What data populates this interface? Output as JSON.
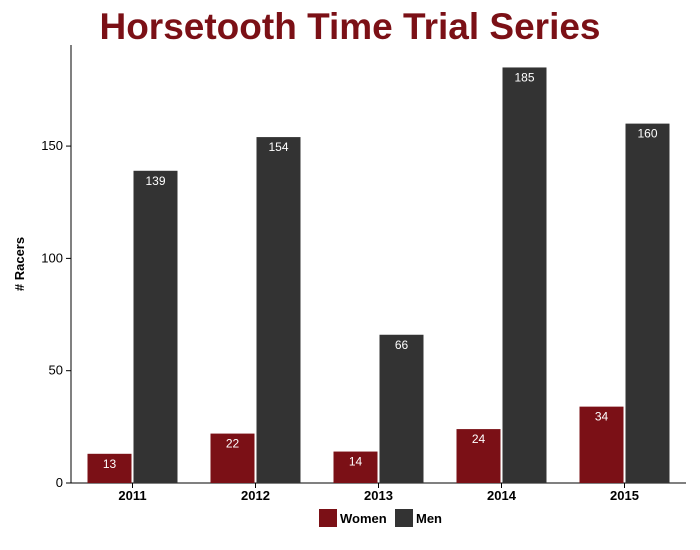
{
  "chart_data": {
    "type": "bar",
    "title": "Horsetooth Time Trial Series",
    "xlabel": "",
    "ylabel": "# Racers",
    "categories": [
      "2011",
      "2012",
      "2013",
      "2014",
      "2015"
    ],
    "series": [
      {
        "name": "Women",
        "color": "#7b1016",
        "values": [
          13,
          22,
          14,
          24,
          34
        ]
      },
      {
        "name": "Men",
        "color": "#333333",
        "values": [
          139,
          154,
          66,
          185,
          160
        ]
      }
    ],
    "ylim": [
      0,
      195
    ],
    "yticks": [
      0,
      50,
      100,
      150
    ],
    "grid": false,
    "legend_position": "bottom",
    "title_color": "#7b1016"
  }
}
